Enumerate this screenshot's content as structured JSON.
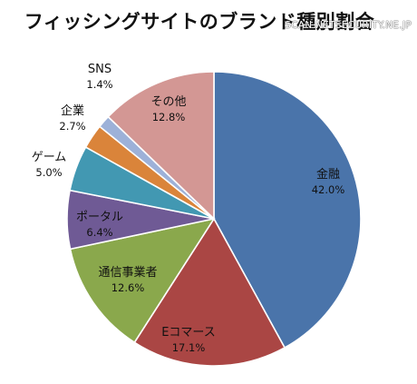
{
  "chart_data": {
    "type": "pie",
    "title": "フィッシングサイトのブランド種別割合",
    "categories": [
      "金融",
      "Eコマース",
      "通信事業者",
      "ポータル",
      "ゲーム",
      "企業",
      "SNS",
      "その他"
    ],
    "values": [
      42.0,
      17.1,
      12.6,
      6.4,
      5.0,
      2.7,
      1.4,
      12.8
    ],
    "value_labels": [
      "42.0%",
      "17.1%",
      "12.6%",
      "6.4%",
      "5.0%",
      "2.7%",
      "1.4%",
      "12.8%"
    ],
    "colors": [
      "#4A74AA",
      "#AA4644",
      "#8AA84C",
      "#6F5A95",
      "#4298B2",
      "#DA843A",
      "#9DB1D8",
      "#D39794"
    ],
    "start_angle_deg": 0,
    "direction": "clockwise",
    "legend": "none"
  },
  "watermark": "SCAN.NETSECURITY.NE.JP"
}
